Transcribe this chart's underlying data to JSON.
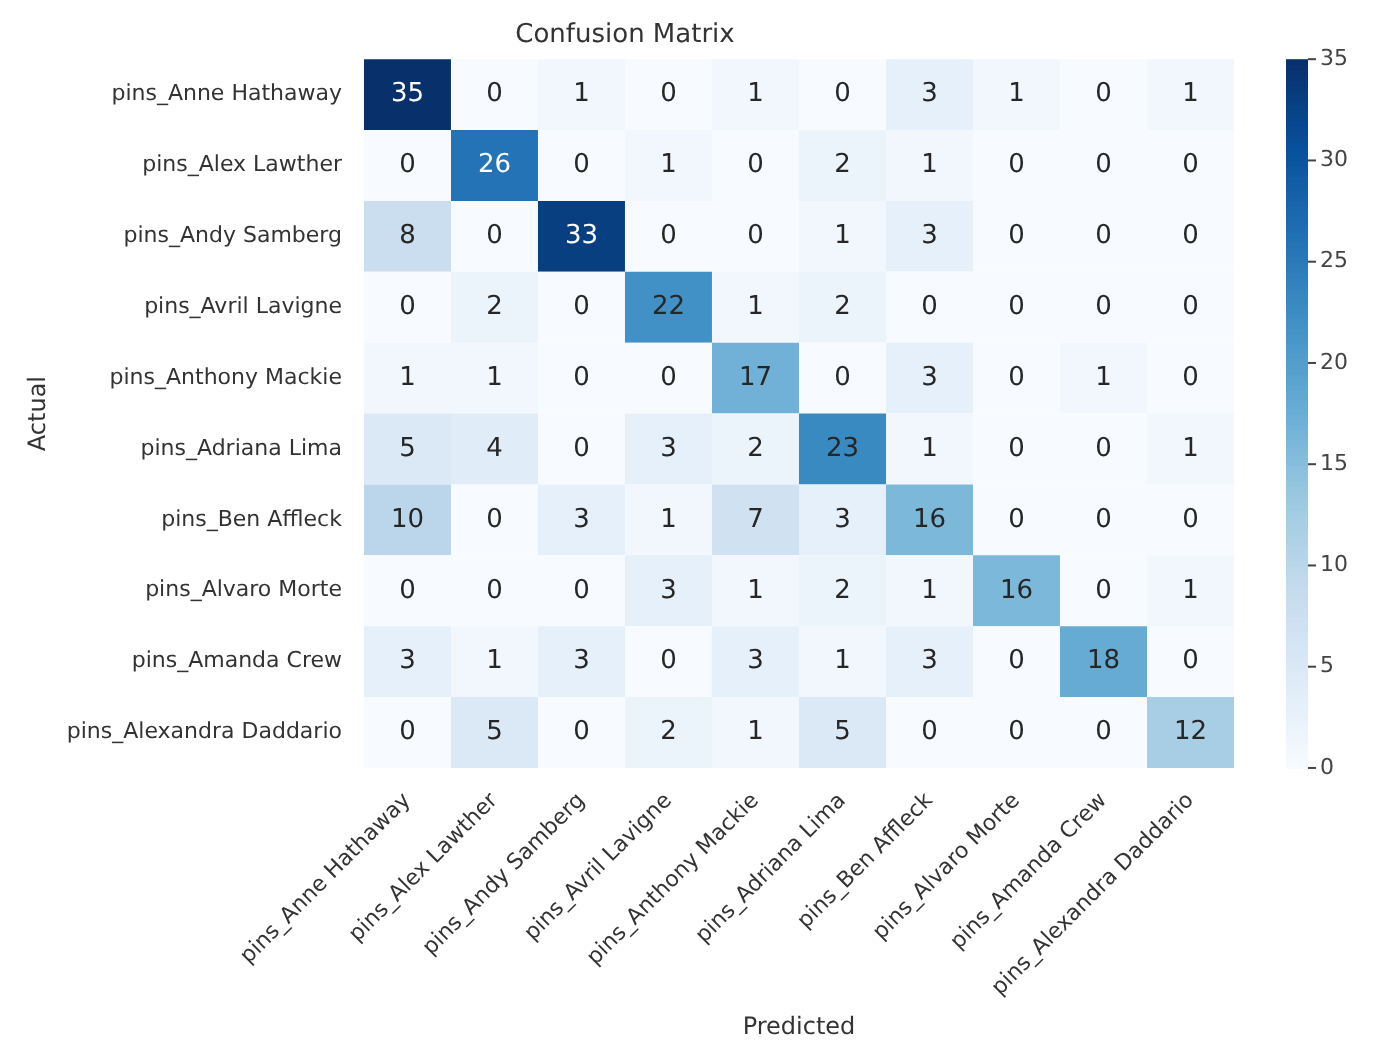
{
  "chart_data": {
    "type": "heatmap",
    "title": "Confusion Matrix",
    "xlabel": "Predicted",
    "ylabel": "Actual",
    "categories": [
      "pins_Anne Hathaway",
      "pins_Alex Lawther",
      "pins_Andy Samberg",
      "pins_Avril Lavigne",
      "pins_Anthony Mackie",
      "pins_Adriana Lima",
      "pins_Ben Affleck",
      "pins_Alvaro Morte",
      "pins_Amanda Crew",
      "pins_Alexandra Daddario"
    ],
    "y_categories": [
      "pins_Anne Hathaway",
      "pins_Alex Lawther",
      "pins_Andy Samberg",
      "pins_Avril Lavigne",
      "pins_Anthony Mackie",
      "pins_Adriana Lima",
      "pins_Ben Affleck",
      "pins_Alvaro Morte",
      "pins_Amanda Crew",
      "pins_Alexandra Daddario"
    ],
    "cells": [
      [
        35,
        0,
        1,
        0,
        1,
        0,
        3,
        1,
        0,
        1
      ],
      [
        0,
        26,
        0,
        1,
        0,
        2,
        1,
        0,
        0,
        0
      ],
      [
        8,
        0,
        33,
        0,
        0,
        1,
        3,
        0,
        0,
        0
      ],
      [
        0,
        2,
        0,
        22,
        1,
        2,
        0,
        0,
        0,
        0
      ],
      [
        1,
        1,
        0,
        0,
        17,
        0,
        3,
        0,
        1,
        0
      ],
      [
        5,
        4,
        0,
        3,
        2,
        23,
        1,
        0,
        0,
        1
      ],
      [
        10,
        0,
        3,
        1,
        7,
        3,
        16,
        0,
        0,
        0
      ],
      [
        0,
        0,
        0,
        3,
        1,
        2,
        1,
        16,
        0,
        1
      ],
      [
        3,
        1,
        3,
        0,
        3,
        1,
        3,
        0,
        18,
        0
      ],
      [
        0,
        5,
        0,
        2,
        1,
        5,
        0,
        0,
        0,
        12
      ]
    ],
    "clim": [
      0,
      35
    ],
    "cticks": [
      0,
      5,
      10,
      15,
      20,
      25,
      30,
      35
    ],
    "data_labels": true
  }
}
